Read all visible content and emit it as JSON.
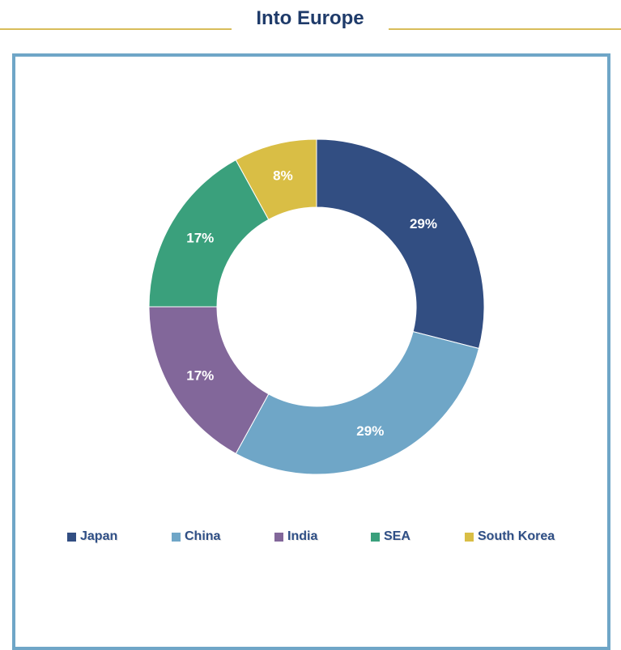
{
  "header": {
    "title": "Into Europe"
  },
  "colors": {
    "accent_line": "#d8bd5a",
    "frame_border": "#6fa6c7",
    "title_text": "#1f3b6a",
    "legend_text": "#2f4f86"
  },
  "chart_data": {
    "type": "pie",
    "style": "donut",
    "title": "",
    "categories": [
      "Japan",
      "China",
      "India",
      "SEA",
      "South Korea"
    ],
    "values": [
      29,
      29,
      17,
      17,
      8
    ],
    "labels": [
      "29%",
      "29%",
      "17%",
      "17%",
      "8%"
    ],
    "colors": [
      "#324e82",
      "#6fa6c7",
      "#82679a",
      "#3aa07c",
      "#d9be45"
    ],
    "legend": {
      "position": "bottom"
    }
  }
}
